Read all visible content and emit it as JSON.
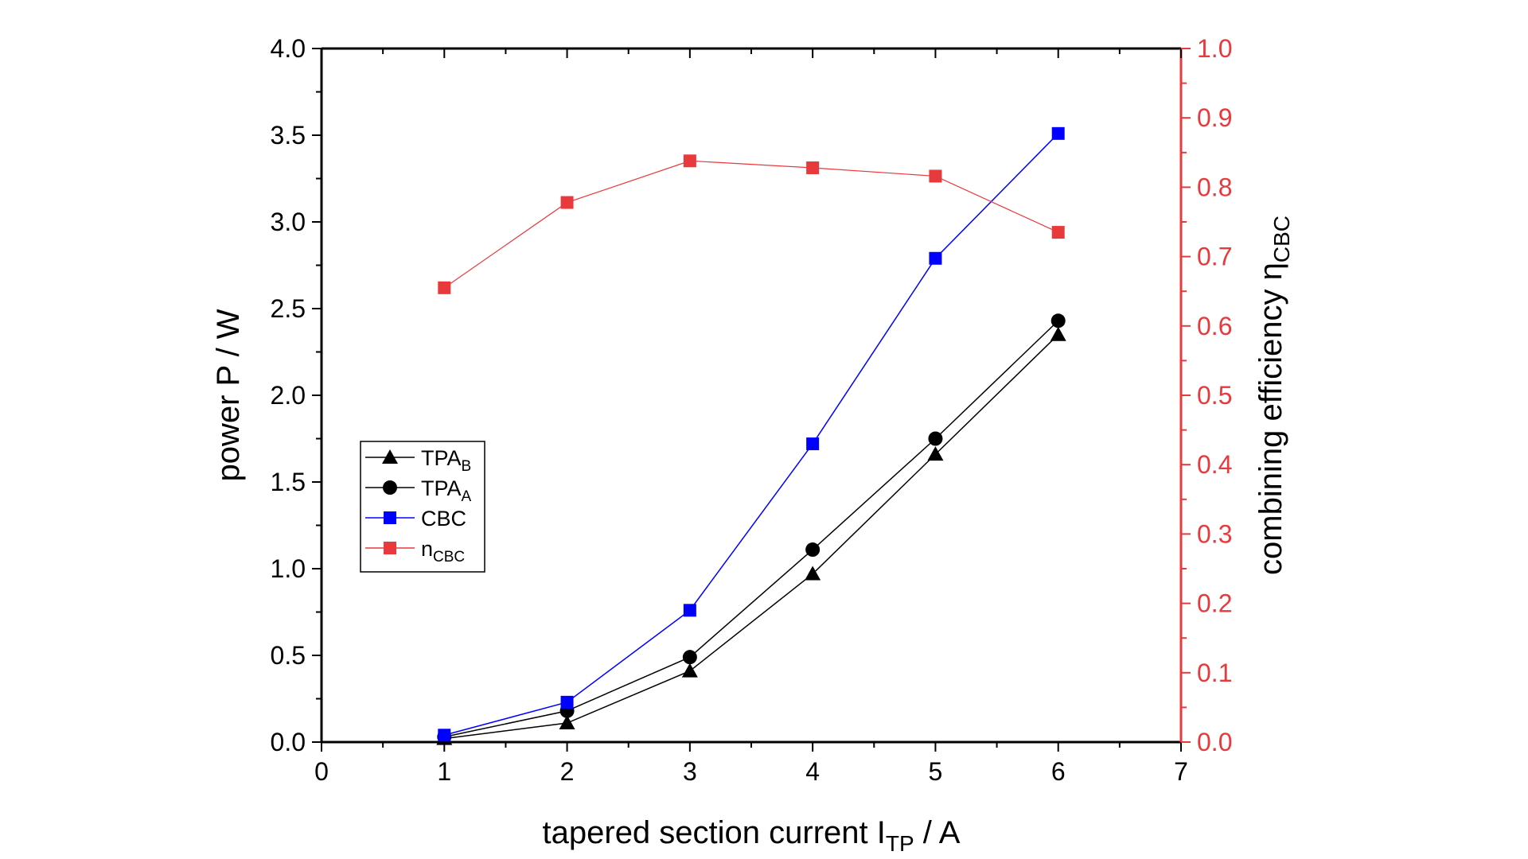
{
  "chart_data": {
    "type": "line",
    "xlabel": "tapered section current I",
    "xlabel_sub": "TP",
    "xlabel_suffix": " / A",
    "ylabel": "power P / W",
    "y2label": "combining efficiency η",
    "y2label_sub": "CBC",
    "xlim": [
      0,
      7
    ],
    "ylim": [
      0,
      4.0
    ],
    "y2lim": [
      0,
      1.0
    ],
    "xticks": [
      "0",
      "1",
      "2",
      "3",
      "4",
      "5",
      "6",
      "7"
    ],
    "yticks": [
      "0.0",
      "0.5",
      "1.0",
      "1.5",
      "2.0",
      "2.5",
      "3.0",
      "3.5",
      "4.0"
    ],
    "y2ticks": [
      "0.0",
      "0.1",
      "0.2",
      "0.3",
      "0.4",
      "0.5",
      "0.6",
      "0.7",
      "0.8",
      "0.9",
      "1.0"
    ],
    "grid": false,
    "legend_position": "center-left",
    "x": [
      1,
      2,
      3,
      4,
      5,
      6
    ],
    "series": [
      {
        "name": "TPA",
        "sub": "B",
        "axis": "left",
        "marker": "triangle",
        "color": "#000000",
        "values": [
          0.02,
          0.11,
          0.41,
          0.97,
          1.66,
          2.35
        ]
      },
      {
        "name": "TPA",
        "sub": "A",
        "axis": "left",
        "marker": "circle",
        "color": "#000000",
        "values": [
          0.03,
          0.18,
          0.49,
          1.11,
          1.75,
          2.43
        ]
      },
      {
        "name": "CBC",
        "sub": "",
        "axis": "left",
        "marker": "square",
        "color": "#0000ff",
        "values": [
          0.04,
          0.23,
          0.76,
          1.72,
          2.79,
          3.51
        ]
      },
      {
        "name": "n",
        "sub": "CBC",
        "axis": "right",
        "marker": "square",
        "color": "#e8393c",
        "values": [
          0.655,
          0.778,
          0.838,
          0.828,
          0.816,
          0.735
        ]
      }
    ],
    "right_axis_color": "#e8393c"
  }
}
